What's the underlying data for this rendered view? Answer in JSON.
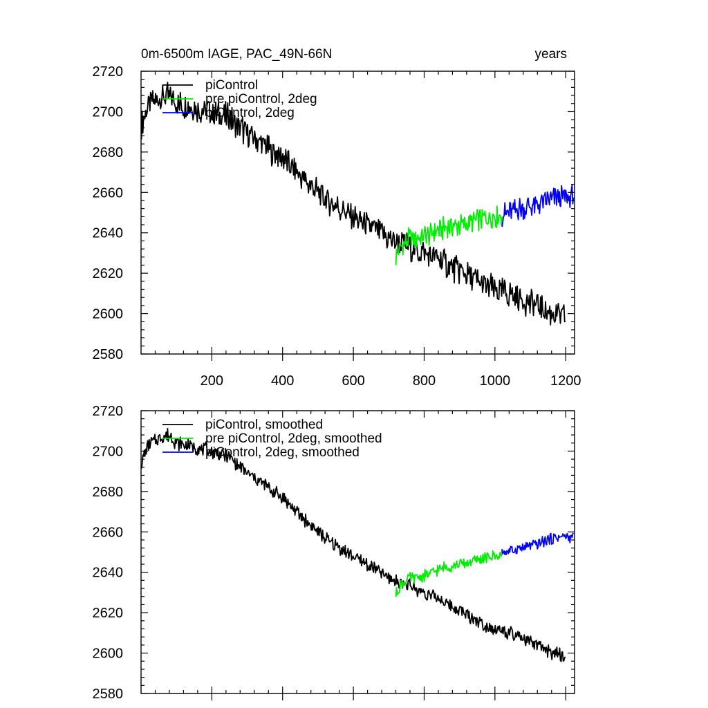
{
  "chart_data": [
    {
      "type": "line",
      "title_left": "0m-6500m IAGE, PAC_49N-66N",
      "title_right": "years",
      "xlabel": "",
      "ylabel": "",
      "xlim": [
        0,
        1225
      ],
      "ylim": [
        2580,
        2720
      ],
      "xticks": [
        200,
        400,
        600,
        800,
        1000,
        1200
      ],
      "yticks": [
        2580,
        2600,
        2620,
        2640,
        2660,
        2680,
        2700,
        2720
      ],
      "show_x_tick_labels": true,
      "legend_position": "top-left",
      "series": [
        {
          "name": "piControl",
          "color": "#000000",
          "noise": 6,
          "points": [
            [
              1,
              2693
            ],
            [
              20,
              2703
            ],
            [
              50,
              2706
            ],
            [
              80,
              2708
            ],
            [
              100,
              2704
            ],
            [
              150,
              2702
            ],
            [
              200,
              2700
            ],
            [
              250,
              2697
            ],
            [
              300,
              2689
            ],
            [
              350,
              2683
            ],
            [
              400,
              2677
            ],
            [
              450,
              2668
            ],
            [
              500,
              2660
            ],
            [
              550,
              2653
            ],
            [
              600,
              2648
            ],
            [
              650,
              2643
            ],
            [
              700,
              2637
            ],
            [
              750,
              2634
            ],
            [
              800,
              2630
            ],
            [
              850,
              2626
            ],
            [
              900,
              2621
            ],
            [
              950,
              2616
            ],
            [
              1000,
              2612
            ],
            [
              1050,
              2609
            ],
            [
              1100,
              2605
            ],
            [
              1150,
              2601
            ],
            [
              1200,
              2598
            ]
          ]
        },
        {
          "name": "pre piControl, 2deg",
          "color": "#00ee00",
          "noise": 5,
          "points": [
            [
              720,
              2628
            ],
            [
              735,
              2633
            ],
            [
              760,
              2637
            ],
            [
              800,
              2638
            ],
            [
              850,
              2642
            ],
            [
              900,
              2644
            ],
            [
              950,
              2646
            ],
            [
              1000,
              2648
            ],
            [
              1020,
              2649
            ]
          ]
        },
        {
          "name": "piControl, 2deg",
          "color": "#0000ff",
          "noise": 5,
          "points": [
            [
              1020,
              2649
            ],
            [
              1050,
              2651
            ],
            [
              1100,
              2653
            ],
            [
              1150,
              2656
            ],
            [
              1200,
              2658
            ],
            [
              1222,
              2658
            ]
          ]
        }
      ]
    },
    {
      "type": "line",
      "title_left": "",
      "title_right": "",
      "xlabel": "",
      "ylabel": "",
      "xlim": [
        0,
        1225
      ],
      "ylim": [
        2580,
        2720
      ],
      "xticks": [
        200,
        400,
        600,
        800,
        1000,
        1200
      ],
      "yticks": [
        2580,
        2600,
        2620,
        2640,
        2660,
        2680,
        2700,
        2720
      ],
      "show_x_tick_labels": false,
      "legend_position": "top-left",
      "series": [
        {
          "name": "piControl, smoothed",
          "color": "#000000",
          "noise": 3,
          "points": [
            [
              1,
              2694
            ],
            [
              20,
              2703
            ],
            [
              50,
              2706
            ],
            [
              80,
              2708
            ],
            [
              100,
              2704
            ],
            [
              150,
              2702
            ],
            [
              200,
              2700
            ],
            [
              250,
              2697
            ],
            [
              300,
              2689
            ],
            [
              350,
              2683
            ],
            [
              400,
              2677
            ],
            [
              450,
              2668
            ],
            [
              500,
              2660
            ],
            [
              550,
              2653
            ],
            [
              600,
              2648
            ],
            [
              650,
              2643
            ],
            [
              700,
              2637
            ],
            [
              750,
              2634
            ],
            [
              800,
              2630
            ],
            [
              850,
              2626
            ],
            [
              900,
              2621
            ],
            [
              950,
              2616
            ],
            [
              1000,
              2612
            ],
            [
              1050,
              2609
            ],
            [
              1100,
              2605
            ],
            [
              1150,
              2601
            ],
            [
              1200,
              2598
            ]
          ]
        },
        {
          "name": "pre piControl, 2deg, smoothed",
          "color": "#00ee00",
          "noise": 2.5,
          "points": [
            [
              720,
              2629
            ],
            [
              735,
              2634
            ],
            [
              760,
              2637
            ],
            [
              800,
              2638
            ],
            [
              850,
              2642
            ],
            [
              900,
              2644
            ],
            [
              950,
              2646
            ],
            [
              1000,
              2648
            ],
            [
              1020,
              2649
            ]
          ]
        },
        {
          "name": "piControl, 2deg, smoothed",
          "color": "#0000ff",
          "noise": 2.5,
          "points": [
            [
              1020,
              2650
            ],
            [
              1050,
              2651
            ],
            [
              1100,
              2653
            ],
            [
              1150,
              2656
            ],
            [
              1200,
              2658
            ],
            [
              1222,
              2657
            ]
          ]
        }
      ]
    }
  ]
}
